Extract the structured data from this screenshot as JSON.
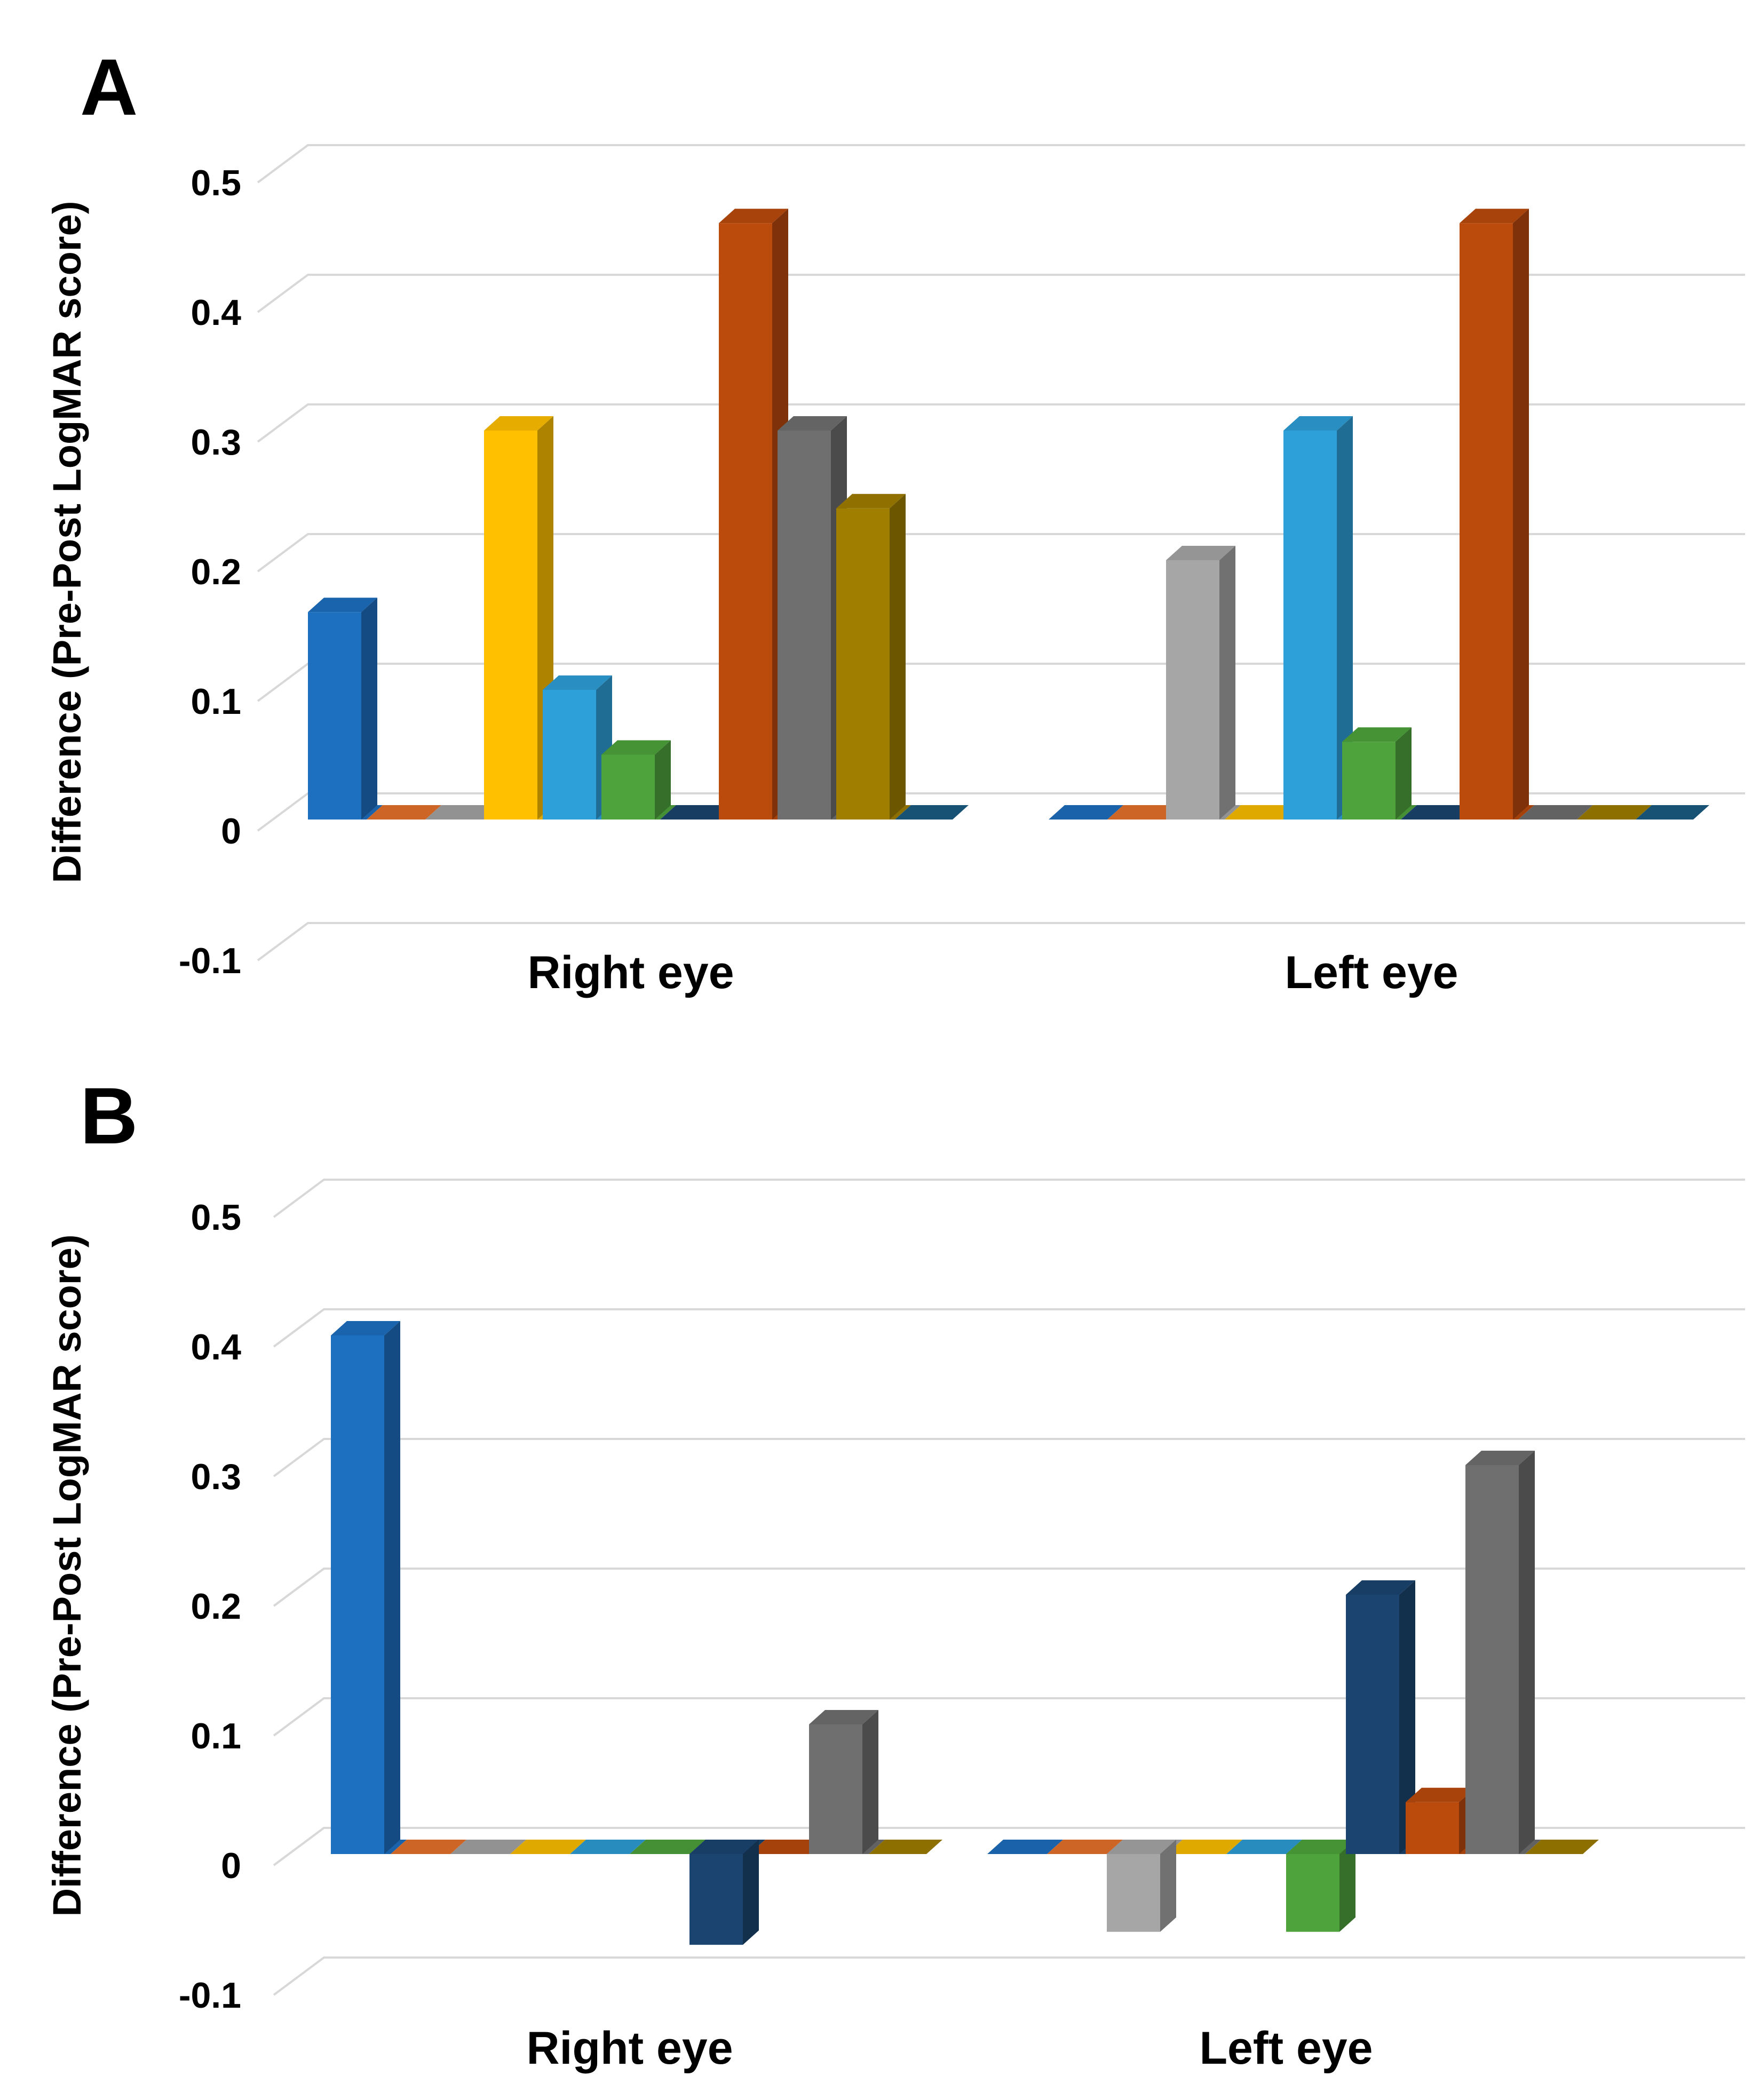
{
  "figure": {
    "background": "#FFFFFF",
    "gridline_color": "#D8D8D8",
    "text_color": "#000000"
  },
  "chart_data": [
    {
      "type": "bar",
      "style": "3d-column",
      "panel": "A",
      "title": "",
      "xlabel": "",
      "ylabel": "Difference (Pre-Post LogMAR score)",
      "categories": [
        "Right eye",
        "Left eye"
      ],
      "ylim": [
        -0.1,
        0.5
      ],
      "yticks": [
        "0.5",
        "0.4",
        "0.3",
        "0.2",
        "0.1",
        "0",
        "-0.1"
      ],
      "grid": true,
      "legend": "none",
      "series": [
        {
          "color": "#1D6FC0",
          "values": [
            0.16,
            0
          ]
        },
        {
          "color": "#E8732A",
          "values": [
            0,
            0
          ]
        },
        {
          "color": "#A6A6A6",
          "values": [
            0,
            0.2
          ]
        },
        {
          "color": "#FFC000",
          "values": [
            0.3,
            0
          ]
        },
        {
          "color": "#2D9FD9",
          "values": [
            0.1,
            0.3
          ]
        },
        {
          "color": "#4EA33C",
          "values": [
            0.05,
            0.06
          ]
        },
        {
          "color": "#1B4570",
          "values": [
            0,
            0
          ]
        },
        {
          "color": "#BB4A0D",
          "values": [
            0.46,
            0.46
          ]
        },
        {
          "color": "#6F6F6F",
          "values": [
            0.3,
            0
          ]
        },
        {
          "color": "#A07E00",
          "values": [
            0.24,
            0
          ]
        },
        {
          "color": "#1A5C83",
          "values": [
            0,
            0
          ]
        }
      ]
    },
    {
      "type": "bar",
      "style": "3d-column",
      "panel": "B",
      "title": "",
      "xlabel": "",
      "ylabel": "Difference (Pre-Post LogMAR score)",
      "categories": [
        "Right eye",
        "Left eye"
      ],
      "ylim": [
        -0.1,
        0.5
      ],
      "yticks": [
        "0.5",
        "0.4",
        "0.3",
        "0.2",
        "0.1",
        "0",
        "-0.1"
      ],
      "grid": true,
      "legend": "none",
      "series": [
        {
          "color": "#1D6FC0",
          "values": [
            0.4,
            0
          ]
        },
        {
          "color": "#E8732A",
          "values": [
            0,
            0
          ]
        },
        {
          "color": "#A6A6A6",
          "values": [
            0,
            -0.06
          ]
        },
        {
          "color": "#FFC000",
          "values": [
            0,
            0
          ]
        },
        {
          "color": "#2D9FD9",
          "values": [
            0,
            0
          ]
        },
        {
          "color": "#4EA33C",
          "values": [
            0,
            -0.06
          ]
        },
        {
          "color": "#1B4570",
          "values": [
            -0.07,
            0.2
          ]
        },
        {
          "color": "#BB4A0D",
          "values": [
            0,
            0.04
          ]
        },
        {
          "color": "#6F6F6F",
          "values": [
            0.1,
            0.3
          ]
        },
        {
          "color": "#A07E00",
          "values": [
            0,
            0
          ]
        }
      ]
    }
  ]
}
